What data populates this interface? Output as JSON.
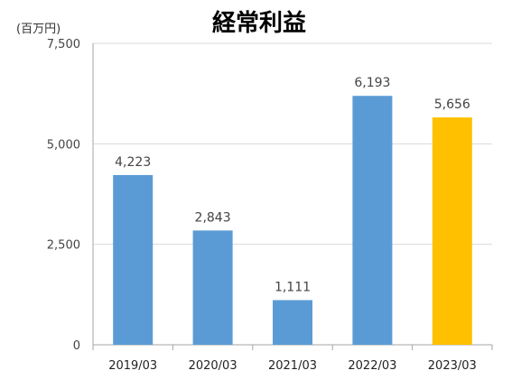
{
  "chart_data": {
    "type": "bar",
    "title": "経常利益",
    "unit_label": "(百万円)",
    "categories": [
      "2019/03",
      "2020/03",
      "2021/03",
      "2022/03",
      "2023/03"
    ],
    "values": [
      4223,
      2843,
      1111,
      6193,
      5656
    ],
    "value_labels": [
      "4,223",
      "2,843",
      "1,111",
      "6,193",
      "5,656"
    ],
    "ylim": [
      0,
      7500
    ],
    "yticks": [
      0,
      2500,
      5000,
      7500
    ],
    "ytick_labels": [
      "0",
      "2,500",
      "5,000",
      "7,500"
    ],
    "grid": true,
    "colors": {
      "bar": "#5B9BD5",
      "highlight": "#FFC000",
      "grid": "#D9D9D9",
      "axis": "#A6A6A6"
    },
    "highlight_index": 4
  }
}
